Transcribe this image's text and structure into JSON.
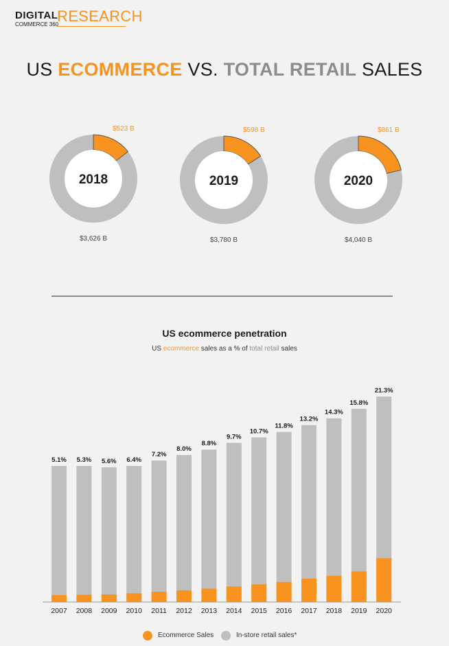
{
  "logo": {
    "digital": "DIGITAL",
    "commerce": "COMMERCE 360",
    "research": "RESEARCH"
  },
  "title": {
    "part1": "US ",
    "part2": "ECOMMERCE",
    "part3": " VS. ",
    "part4": "TOTAL RETAIL",
    "part5": " SALES"
  },
  "subtitle": {
    "heading": "US ecommerce penetration",
    "caption_pre": "US ",
    "caption_ecom": "ecommerce",
    "caption_mid": " sales as a % of ",
    "caption_total": "total retail",
    "caption_post": " sales"
  },
  "colors": {
    "orange": "#f7931e",
    "gray": "#bfbfbf",
    "dark": "#1a1a1a"
  },
  "legend": {
    "ecommerce": "Ecommerce Sales",
    "instore": "In-store retail sales*"
  },
  "chart_data": [
    {
      "type": "pie",
      "variant": "donut",
      "series": [
        {
          "year": "2018",
          "ecommerce": 523,
          "total": 3626,
          "ecommerce_label": "$523 B",
          "total_label": "$3,626 B"
        },
        {
          "year": "2019",
          "ecommerce": 598,
          "total": 3780,
          "ecommerce_label": "$598 B",
          "total_label": "$3,780 B"
        },
        {
          "year": "2020",
          "ecommerce": 861,
          "total": 4040,
          "ecommerce_label": "$861 B",
          "total_label": "$4,040 B"
        }
      ]
    },
    {
      "type": "bar",
      "stacked": true,
      "title": "US ecommerce penetration",
      "categories": [
        "2007",
        "2008",
        "2009",
        "2010",
        "2011",
        "2012",
        "2013",
        "2014",
        "2015",
        "2016",
        "2017",
        "2018",
        "2019",
        "2020"
      ],
      "percent_labels": [
        "5.1%",
        "5.3%",
        "5.6%",
        "6.4%",
        "7.2%",
        "8.0%",
        "8.8%",
        "9.7%",
        "10.7%",
        "11.8%",
        "13.2%",
        "14.3%",
        "15.8%",
        "21.3%"
      ],
      "series": [
        {
          "name": "Ecommerce Sales",
          "values": [
            5.1,
            5.3,
            5.6,
            6.4,
            7.2,
            8.0,
            8.8,
            9.7,
            10.7,
            11.8,
            13.2,
            14.3,
            15.8,
            21.3
          ]
        },
        {
          "name": "In-store retail sales*",
          "total_heights": [
            100,
            100,
            99,
            100,
            104,
            108,
            112,
            117,
            121,
            125,
            130,
            135,
            142,
            151
          ]
        }
      ],
      "legend": "bottom"
    }
  ]
}
